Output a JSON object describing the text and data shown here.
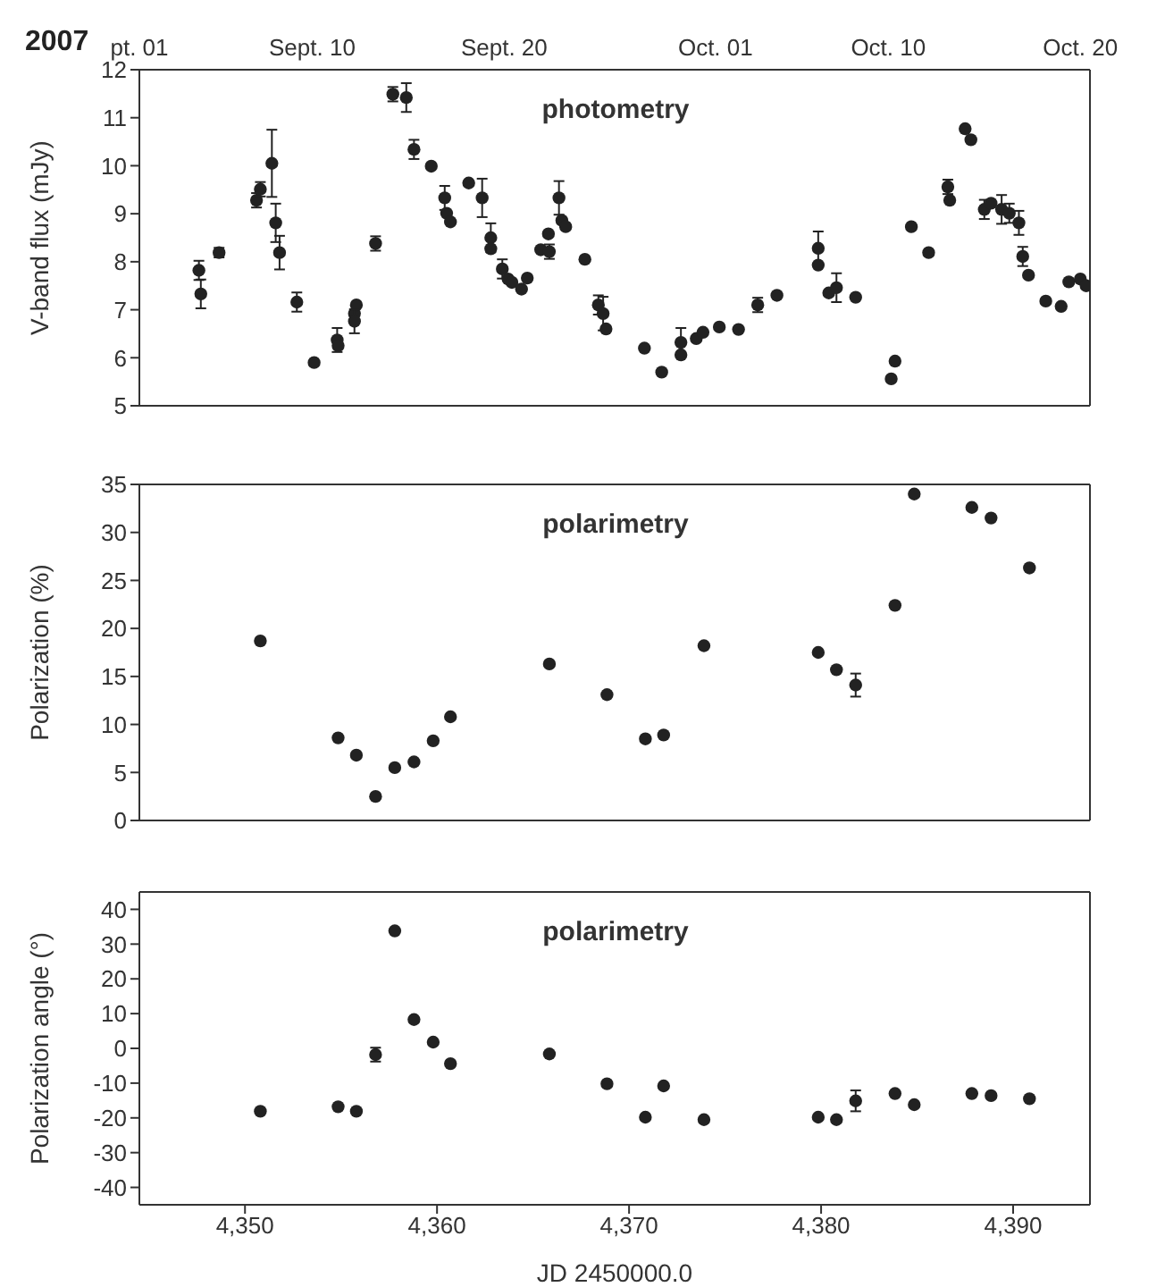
{
  "chart_data": [
    {
      "type": "scatter",
      "ylabel": "V-band flux (mJy)",
      "x2label": "2007",
      "annotations": [
        "photometry"
      ],
      "marker": "circle",
      "tick_labels": "y",
      "xlim": [
        4344.5,
        4394
      ],
      "xticks": [
        {
          "value": 4350,
          "label": null
        },
        {
          "value": 4360,
          "label": null
        },
        {
          "value": 4370,
          "label": null
        },
        {
          "value": 4380,
          "label": null
        },
        {
          "value": 4390,
          "label": null
        }
      ],
      "x2lim": [
        "2007-09-01T00:00",
        "2007-10-20T12:00"
      ],
      "x2ticks": [
        {
          "value": "2007-09-01",
          "label": "pt. 01"
        },
        {
          "value": "2007-09-10",
          "label": "Sept. 10"
        },
        {
          "value": "2007-09-20",
          "label": "Sept. 20"
        },
        {
          "value": "2007-10-01",
          "label": "Oct. 01"
        },
        {
          "value": "2007-10-10",
          "label": "Oct. 10"
        },
        {
          "value": "2007-10-20",
          "label": "Oct. 20"
        }
      ],
      "ylim": [
        5,
        12
      ],
      "yticks": [
        5,
        6,
        7,
        8,
        9,
        10,
        11,
        12
      ],
      "series": [
        {
          "color": "#222222",
          "x": [
            4347.6,
            4347.7,
            4348.65,
            4350.6,
            4350.8,
            4351.4,
            4351.6,
            4351.8,
            4352.7,
            4353.6,
            4354.8,
            4354.85,
            4355.7,
            4355.8,
            4355.7,
            4356.8,
            4357.7,
            4358.4,
            4358.8,
            4359.7,
            4360.4,
            4360.5,
            4360.7,
            4361.65,
            4362.35,
            4362.8,
            4362.8,
            4363.4,
            4363.7,
            4363.9,
            4364.4,
            4364.7,
            4365.4,
            4365.8,
            4365.85,
            4366.35,
            4366.5,
            4366.7,
            4367.7,
            4368.4,
            4368.65,
            4368.8,
            4370.8,
            4371.7,
            4372.7,
            4372.7,
            4373.5,
            4373.85,
            4374.7,
            4375.7,
            4376.7,
            4377.7,
            4379.85,
            4379.85,
            4380.4,
            4380.8,
            4381.8,
            4383.65,
            4383.85,
            4384.7,
            4385.6,
            4386.6,
            4386.7,
            4387.5,
            4387.8,
            4388.5,
            4388.85,
            4389.4,
            4389.8,
            4390.3,
            4390.5,
            4390.8,
            4391.7,
            4392.5,
            4392.9,
            4393.5,
            4393.8
          ],
          "values": [
            7.82,
            7.33,
            8.19,
            9.28,
            9.51,
            10.05,
            8.81,
            8.19,
            7.16,
            5.9,
            6.37,
            6.25,
            6.92,
            7.1,
            6.76,
            8.38,
            11.49,
            11.42,
            10.34,
            9.99,
            9.33,
            9.01,
            8.83,
            9.64,
            9.33,
            8.5,
            8.27,
            7.85,
            7.64,
            7.57,
            7.43,
            7.66,
            8.25,
            8.58,
            8.21,
            9.33,
            8.86,
            8.73,
            8.05,
            7.1,
            6.92,
            6.6,
            6.2,
            5.7,
            6.32,
            6.06,
            6.4,
            6.53,
            6.64,
            6.59,
            7.1,
            7.3,
            8.28,
            7.93,
            7.35,
            7.46,
            7.26,
            5.56,
            5.93,
            8.73,
            8.19,
            9.56,
            9.28,
            10.77,
            10.54,
            9.09,
            9.22,
            9.09,
            9.01,
            8.81,
            8.11,
            7.72,
            7.18,
            7.07,
            7.58,
            7.64,
            7.5
          ],
          "errors": [
            0.2,
            0.3,
            0.1,
            0.15,
            0.15,
            0.7,
            0.4,
            0.35,
            0.2,
            null,
            0.25,
            null,
            null,
            null,
            0.25,
            0.15,
            0.15,
            0.3,
            0.2,
            null,
            0.25,
            null,
            null,
            null,
            0.4,
            0.3,
            null,
            0.2,
            null,
            null,
            null,
            null,
            null,
            null,
            0.15,
            0.35,
            null,
            null,
            null,
            0.2,
            0.35,
            null,
            null,
            null,
            0.3,
            null,
            null,
            null,
            null,
            null,
            0.15,
            null,
            0.35,
            null,
            null,
            0.3,
            null,
            null,
            null,
            null,
            null,
            0.15,
            null,
            null,
            null,
            0.2,
            null,
            0.3,
            0.2,
            0.25,
            0.2,
            null,
            null,
            null,
            null,
            null,
            null
          ]
        }
      ]
    },
    {
      "type": "scatter",
      "ylabel": "Polarization (%)",
      "annotations": [
        "polarimetry"
      ],
      "marker": "circle",
      "tick_labels": "y",
      "xlim": [
        4344.5,
        4394
      ],
      "xticks": [
        {
          "value": 4350,
          "label": null
        },
        {
          "value": 4360,
          "label": null
        },
        {
          "value": 4370,
          "label": null
        },
        {
          "value": 4380,
          "label": null
        },
        {
          "value": 4390,
          "label": null
        }
      ],
      "ylim": [
        0,
        35
      ],
      "yticks": [
        0,
        5,
        10,
        15,
        20,
        25,
        30,
        35
      ],
      "series": [
        {
          "color": "#222222",
          "x": [
            4350.8,
            4354.85,
            4355.8,
            4356.8,
            4357.8,
            4358.8,
            4359.8,
            4360.7,
            4365.85,
            4368.85,
            4370.85,
            4371.8,
            4373.9,
            4379.85,
            4380.8,
            4381.8,
            4383.85,
            4384.85,
            4387.85,
            4388.85,
            4390.85
          ],
          "values": [
            18.7,
            8.6,
            6.8,
            2.5,
            5.5,
            6.1,
            8.3,
            10.8,
            16.3,
            13.1,
            8.5,
            8.9,
            18.2,
            17.5,
            15.7,
            14.1,
            22.4,
            34.0,
            32.6,
            31.5,
            26.3
          ],
          "errors": [
            null,
            null,
            null,
            null,
            null,
            null,
            null,
            null,
            null,
            null,
            null,
            null,
            null,
            null,
            null,
            1.2,
            null,
            null,
            null,
            null,
            null
          ]
        }
      ]
    },
    {
      "type": "scatter",
      "ylabel": "Polarization angle (°)",
      "xlabel": "JD 2450000.0",
      "annotations": [
        "polarimetry"
      ],
      "marker": "circle",
      "xlim": [
        4344.5,
        4394
      ],
      "xticks": [
        {
          "value": 4350,
          "label": "4,350"
        },
        {
          "value": 4360,
          "label": "4,360"
        },
        {
          "value": 4370,
          "label": "4,370"
        },
        {
          "value": 4380,
          "label": "4,380"
        },
        {
          "value": 4390,
          "label": "4,390"
        }
      ],
      "ylim": [
        -45,
        45
      ],
      "yticks": [
        -40,
        -30,
        -20,
        -10,
        0,
        10,
        20,
        30,
        40
      ],
      "series": [
        {
          "color": "#222222",
          "x": [
            4350.8,
            4354.85,
            4355.8,
            4356.8,
            4357.8,
            4358.8,
            4359.8,
            4360.7,
            4365.85,
            4368.85,
            4370.85,
            4371.8,
            4373.9,
            4379.85,
            4380.8,
            4381.8,
            4383.85,
            4384.85,
            4387.85,
            4388.85,
            4390.85
          ],
          "values": [
            -18.1,
            -16.8,
            -18.1,
            -1.8,
            33.8,
            8.3,
            1.8,
            -4.4,
            -1.6,
            -10.2,
            -19.8,
            -10.8,
            -20.5,
            -19.8,
            -20.5,
            -15.1,
            -13,
            -16.2,
            -13,
            -13.6,
            -14.5
          ],
          "errors": [
            null,
            null,
            null,
            2,
            null,
            null,
            null,
            null,
            null,
            null,
            null,
            null,
            null,
            null,
            null,
            3,
            null,
            null,
            null,
            null,
            null
          ]
        }
      ]
    }
  ]
}
